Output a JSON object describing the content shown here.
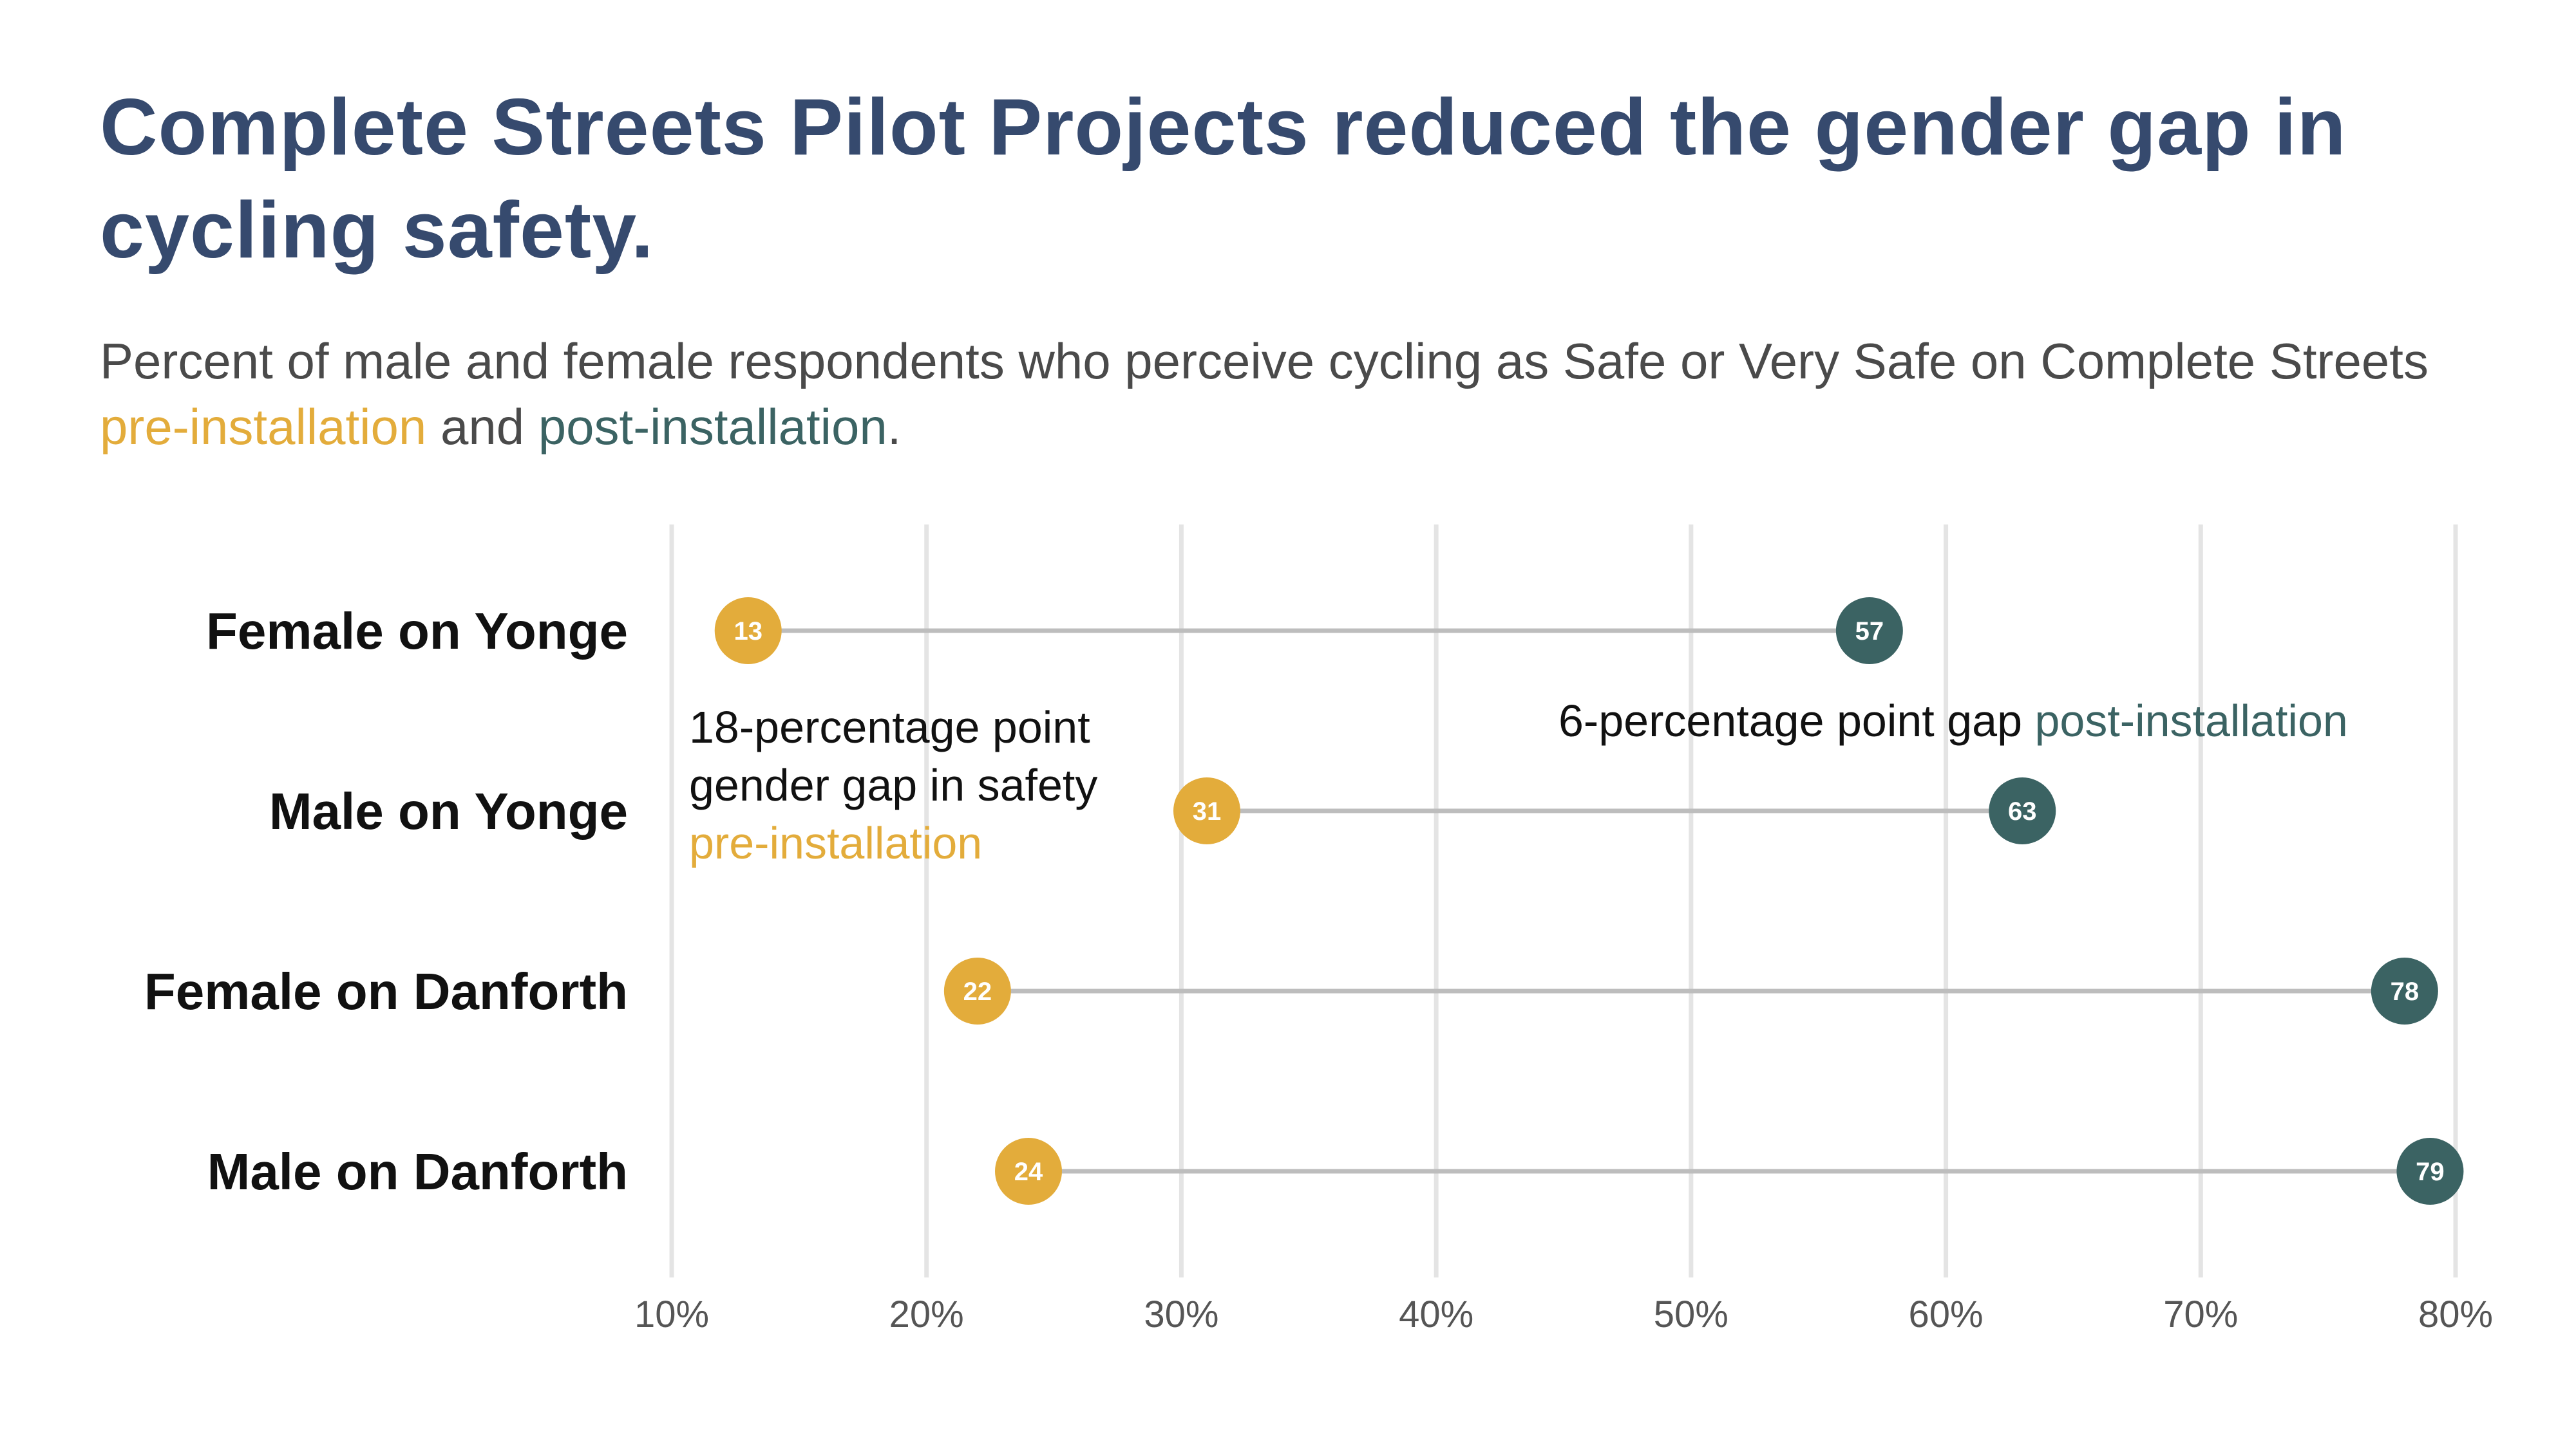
{
  "title": "Complete Streets Pilot Projects reduced the gender gap in cycling safety.",
  "subtitle": {
    "part1": "Percent of male and female respondents who perceive cycling as Safe or Very Safe on Complete Streets ",
    "pre_label": "pre-installation",
    "part2": " and ",
    "post_label": "post-installation",
    "part3": "."
  },
  "annotations": {
    "gap_pre": {
      "text": "18-percentage point gender gap in safety",
      "highlight": "pre-installation"
    },
    "gap_post": {
      "text": "6-percentage point gap ",
      "highlight": "post-installation"
    }
  },
  "colors": {
    "pre": "#e3ac3b",
    "post": "#3b6363",
    "title": "#364a6e",
    "connector": "#bdbdbd",
    "grid": "#e4e4e4"
  },
  "chart_data": {
    "type": "dumbbell",
    "categories": [
      "Female on Yonge",
      "Male on Yonge",
      "Female on Danforth",
      "Male on Danforth"
    ],
    "series": [
      {
        "name": "pre-installation",
        "values": [
          13,
          31,
          22,
          24
        ]
      },
      {
        "name": "post-installation",
        "values": [
          57,
          63,
          78,
          79
        ]
      }
    ],
    "x_ticks": [
      10,
      20,
      30,
      40,
      50,
      60,
      70,
      80
    ],
    "x_tick_labels": [
      "10%",
      "20%",
      "30%",
      "40%",
      "50%",
      "60%",
      "70%",
      "80%"
    ],
    "xlim": [
      10,
      80
    ],
    "grid": true,
    "xlabel": "",
    "ylabel": ""
  }
}
